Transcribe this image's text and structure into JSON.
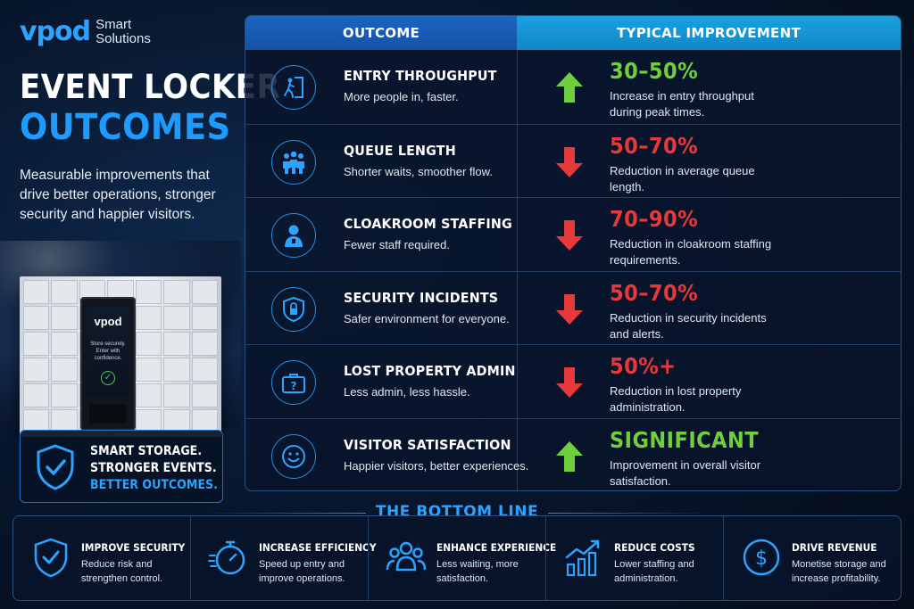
{
  "brand": {
    "logo": "vpod",
    "tagline_line1": "Smart",
    "tagline_line2": "Solutions"
  },
  "title": {
    "line1": "EVENT LOCKER",
    "line2": "OUTCOMES"
  },
  "intro": "Measurable improvements that drive better operations, stronger security and happier visitors.",
  "kiosk": {
    "logo": "vpod",
    "text": "Store securely. Enter with confidence."
  },
  "promo": {
    "line1": "SMART STORAGE.",
    "line2": "STRONGER EVENTS.",
    "line3": "BETTER OUTCOMES.",
    "icon": "shield-check-icon"
  },
  "table": {
    "header_outcome": "OUTCOME",
    "header_improvement": "TYPICAL IMPROVEMENT",
    "rows": [
      {
        "title": "ENTRY THROUGHPUT",
        "subtitle": "More people in, faster.",
        "value": "30–50%",
        "desc": "Increase in entry throughput during peak times.",
        "direction": "up",
        "color": "#6fcf3f",
        "icon": "person-entering-door-icon"
      },
      {
        "title": "QUEUE LENGTH",
        "subtitle": "Shorter waits, smoother flow.",
        "value": "50–70%",
        "desc": "Reduction in average queue length.",
        "direction": "down",
        "color": "#e5393b",
        "icon": "people-group-icon"
      },
      {
        "title": "CLOAKROOM STAFFING",
        "subtitle": "Fewer staff required.",
        "value": "70–90%",
        "desc": "Reduction in cloakroom staffing requirements.",
        "direction": "down",
        "color": "#e5393b",
        "icon": "staff-person-icon"
      },
      {
        "title": "SECURITY INCIDENTS",
        "subtitle": "Safer environment for everyone.",
        "value": "50–70%",
        "desc": "Reduction in security incidents and alerts.",
        "direction": "down",
        "color": "#e5393b",
        "icon": "shield-lock-icon"
      },
      {
        "title": "LOST PROPERTY ADMIN",
        "subtitle": "Less admin, less hassle.",
        "value": "50%+",
        "desc": "Reduction in lost property administration.",
        "direction": "down",
        "color": "#e5393b",
        "icon": "briefcase-question-icon"
      },
      {
        "title": "VISITOR SATISFACTION",
        "subtitle": "Happier visitors, better experiences.",
        "value": "SIGNIFICANT",
        "desc": "Improvement in overall visitor satisfaction.",
        "direction": "up",
        "color": "#6fcf3f",
        "icon": "smiley-face-icon"
      }
    ]
  },
  "bottom_line": {
    "title": "THE BOTTOM LINE",
    "items": [
      {
        "head": "IMPROVE SECURITY",
        "text": "Reduce risk and strengthen control.",
        "icon": "shield-check-icon"
      },
      {
        "head": "INCREASE EFFICIENCY",
        "text": "Speed up entry and improve operations.",
        "icon": "stopwatch-icon"
      },
      {
        "head": "ENHANCE EXPERIENCE",
        "text": "Less waiting, more satisfaction.",
        "icon": "people-icon"
      },
      {
        "head": "REDUCE COSTS",
        "text": "Lower staffing and administration.",
        "icon": "bar-chart-growth-icon"
      },
      {
        "head": "DRIVE REVENUE",
        "text": "Monetise storage and increase profitability.",
        "icon": "dollar-coin-icon"
      }
    ]
  },
  "colors": {
    "accent": "#2ba3ff",
    "up": "#6fcf3f",
    "down": "#e5393b",
    "header_left": "#1b64c2",
    "header_right": "#1aa0e0"
  }
}
